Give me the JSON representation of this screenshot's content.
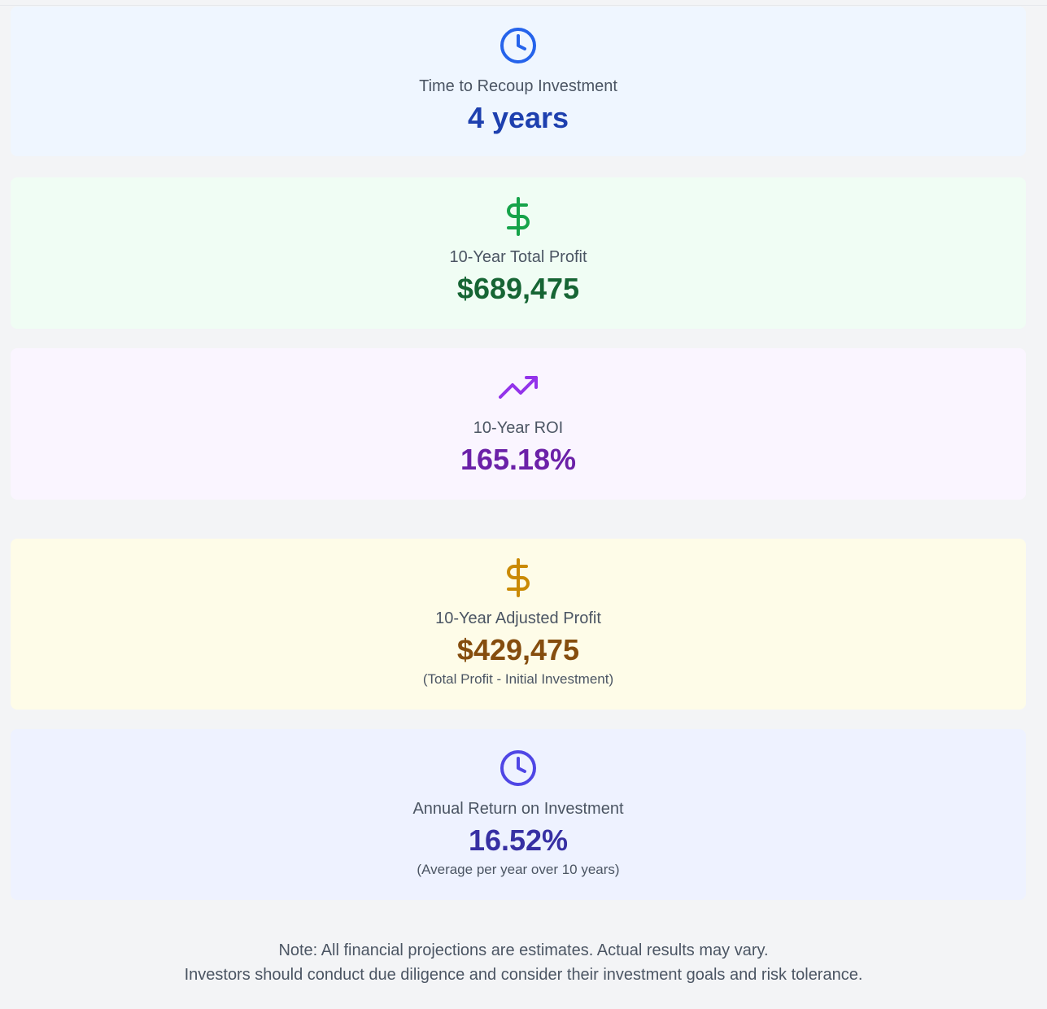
{
  "cards": [
    {
      "icon": "clock-icon",
      "label": "Time to Recoup Investment",
      "value": "4 years",
      "sub": "",
      "bg": "#eff6ff",
      "icon_color": "#2563eb",
      "value_color": "#1e40af"
    },
    {
      "icon": "dollar-icon",
      "label": "10-Year Total Profit",
      "value": "$689,475",
      "sub": "",
      "bg": "#f0fdf4",
      "icon_color": "#16a34a",
      "value_color": "#166534"
    },
    {
      "icon": "trending-up-icon",
      "label": "10-Year ROI",
      "value": "165.18%",
      "sub": "",
      "bg": "#faf5ff",
      "icon_color": "#9333ea",
      "value_color": "#6b21a8"
    },
    {
      "icon": "dollar-icon",
      "label": "10-Year Adjusted Profit",
      "value": "$429,475",
      "sub": "(Total Profit - Initial Investment)",
      "bg": "#fefce8",
      "icon_color": "#ca8a04",
      "value_color": "#854d0e"
    },
    {
      "icon": "clock-icon",
      "label": "Annual Return on Investment",
      "value": "16.52%",
      "sub": "(Average per year over 10 years)",
      "bg": "#eef2ff",
      "icon_color": "#4f46e5",
      "value_color": "#3730a3"
    }
  ],
  "note": {
    "line1": "Note: All financial projections are estimates. Actual results may vary.",
    "line2": "Investors should conduct due diligence and consider their investment goals and risk tolerance."
  }
}
